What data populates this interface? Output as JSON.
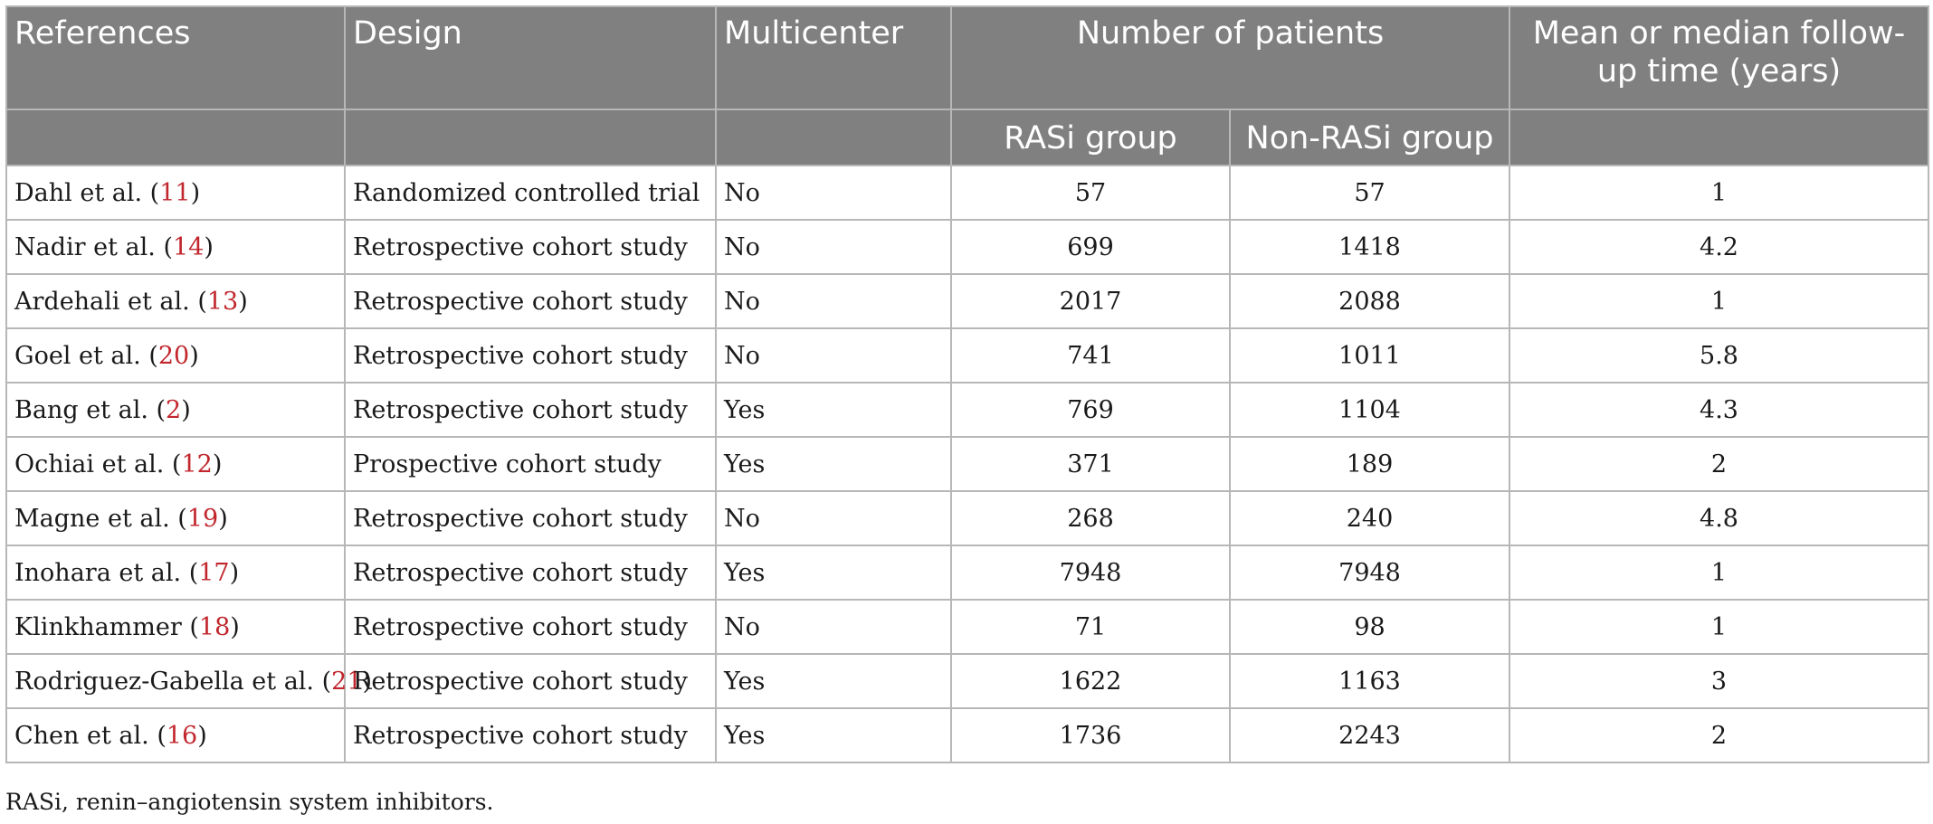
{
  "headers": {
    "references": "References",
    "design": "Design",
    "multicenter": "Multicenter",
    "number_of_patients": "Number of patients",
    "followup": "Mean or median follow-up time (years)",
    "rasi_group": "RASi group",
    "non_rasi_group": "Non-RASi group"
  },
  "rows": [
    {
      "author": "Dahl et al.",
      "ref": "11",
      "design": "Randomized controlled trial",
      "multicenter": "No",
      "rasi": "57",
      "non_rasi": "57",
      "followup": "1"
    },
    {
      "author": "Nadir et al.",
      "ref": "14",
      "design": "Retrospective cohort study",
      "multicenter": "No",
      "rasi": "699",
      "non_rasi": "1418",
      "followup": "4.2"
    },
    {
      "author": "Ardehali et al.",
      "ref": "13",
      "design": "Retrospective cohort study",
      "multicenter": "No",
      "rasi": "2017",
      "non_rasi": "2088",
      "followup": "1"
    },
    {
      "author": "Goel et al.",
      "ref": "20",
      "design": "Retrospective cohort study",
      "multicenter": "No",
      "rasi": "741",
      "non_rasi": "1011",
      "followup": "5.8"
    },
    {
      "author": "Bang et al.",
      "ref": "2",
      "design": "Retrospective cohort study",
      "multicenter": "Yes",
      "rasi": "769",
      "non_rasi": "1104",
      "followup": "4.3"
    },
    {
      "author": "Ochiai et al.",
      "ref": "12",
      "design": "Prospective cohort study",
      "multicenter": "Yes",
      "rasi": "371",
      "non_rasi": "189",
      "followup": "2"
    },
    {
      "author": "Magne et al.",
      "ref": "19",
      "design": "Retrospective cohort study",
      "multicenter": "No",
      "rasi": "268",
      "non_rasi": "240",
      "followup": "4.8"
    },
    {
      "author": "Inohara et al.",
      "ref": "17",
      "design": "Retrospective cohort study",
      "multicenter": "Yes",
      "rasi": "7948",
      "non_rasi": "7948",
      "followup": "1"
    },
    {
      "author": "Klinkhammer",
      "ref": "18",
      "design": "Retrospective cohort study",
      "multicenter": "No",
      "rasi": "71",
      "non_rasi": "98",
      "followup": "1"
    },
    {
      "author": "Rodriguez-Gabella et al.",
      "ref": "21",
      "design": "Retrospective cohort study",
      "multicenter": "Yes",
      "rasi": "1622",
      "non_rasi": "1163",
      "followup": "3"
    },
    {
      "author": "Chen et al.",
      "ref": "16",
      "design": "Retrospective cohort study",
      "multicenter": "Yes",
      "rasi": "1736",
      "non_rasi": "2243",
      "followup": "2"
    }
  ],
  "footnote": "RASi, renin–angiotensin system inhibitors."
}
